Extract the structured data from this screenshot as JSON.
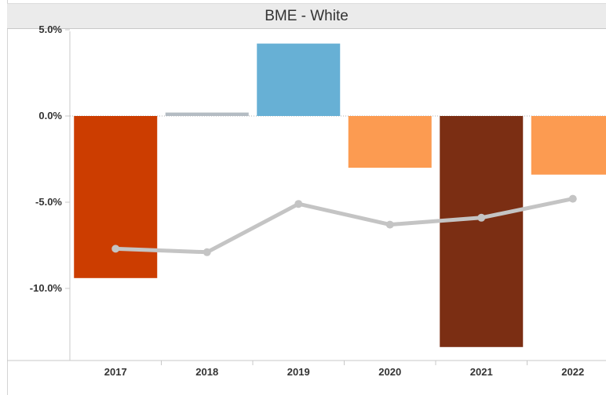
{
  "header": {
    "title": "BME - White"
  },
  "chart_data": {
    "type": "bar",
    "title": "BME - White",
    "categories": [
      "2017",
      "2018",
      "2019",
      "2020",
      "2021",
      "2022"
    ],
    "series": [
      {
        "type": "bar",
        "values": [
          -9.4,
          0.2,
          4.2,
          -3.0,
          -13.4,
          -3.4
        ]
      },
      {
        "type": "line",
        "values": [
          -7.7,
          -7.9,
          -5.1,
          -6.3,
          -5.9,
          -4.8
        ]
      }
    ],
    "bar_colors": [
      "#cc3d00",
      "#b4bcc3",
      "#67b0d5",
      "#fc9b51",
      "#7b2e13",
      "#fc9b51"
    ],
    "line_color": "#c4c4c4",
    "y_ticks": [
      "5.0%",
      "0.0%",
      "-5.0%",
      "-10.0%"
    ],
    "y_tick_values": [
      5,
      0,
      -5,
      -10
    ],
    "ylim": [
      -13.9,
      5.0
    ],
    "xlabel": "",
    "ylabel": "",
    "grid": false,
    "zero_line": true
  }
}
